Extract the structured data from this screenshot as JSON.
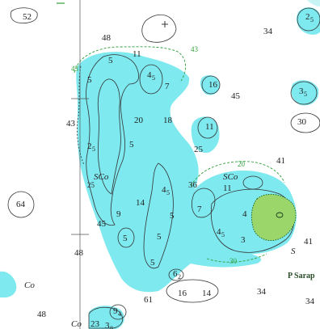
{
  "map": {
    "colors": {
      "land": "#ffffff",
      "shallow": "#7ee9ef",
      "shallow_light": "#c8f4f6",
      "drying": "#9ad66a",
      "depth_line": "#333333",
      "green_contour": "#2f9e3a"
    },
    "soundings": [
      {
        "value": "52"
      },
      {
        "value": "2",
        "sub": "5"
      },
      {
        "value": "48"
      },
      {
        "value": "34"
      },
      {
        "value": "11"
      },
      {
        "value": "5"
      },
      {
        "value": "4",
        "sub": "5"
      },
      {
        "value": "7"
      },
      {
        "value": "16"
      },
      {
        "value": "45"
      },
      {
        "value": "3",
        "sub": "5"
      },
      {
        "value": "5"
      },
      {
        "value": "20"
      },
      {
        "value": "18"
      },
      {
        "value": "43"
      },
      {
        "value": "30"
      },
      {
        "value": "11"
      },
      {
        "value": "2",
        "sub": "5"
      },
      {
        "value": "5"
      },
      {
        "value": "25"
      },
      {
        "value": "41"
      },
      {
        "value": "11"
      },
      {
        "value": "36"
      },
      {
        "value": "4",
        "sub": "5"
      },
      {
        "value": "64"
      },
      {
        "value": "14"
      },
      {
        "value": "9"
      },
      {
        "value": "7"
      },
      {
        "value": "4"
      },
      {
        "value": "5"
      },
      {
        "value": "45"
      },
      {
        "value": "4",
        "sub": "5"
      },
      {
        "value": "3"
      },
      {
        "value": "41"
      },
      {
        "value": "5"
      },
      {
        "value": "5"
      },
      {
        "value": "48"
      },
      {
        "value": "5"
      },
      {
        "value": "6",
        "sub": "2"
      },
      {
        "value": "16"
      },
      {
        "value": "14"
      },
      {
        "value": "34"
      },
      {
        "value": "61"
      },
      {
        "value": "34"
      },
      {
        "value": "9",
        "sub": "4"
      },
      {
        "value": "48"
      },
      {
        "value": "23"
      },
      {
        "value": "3",
        "sub": "8"
      }
    ],
    "contour_labels": [
      {
        "value": "43"
      },
      {
        "value": "43"
      },
      {
        "value": "20"
      },
      {
        "value": "25"
      },
      {
        "value": "30"
      }
    ],
    "seabed_labels": [
      {
        "text": "SCo"
      },
      {
        "text": "SCo"
      },
      {
        "text": "S"
      },
      {
        "text": "Co"
      },
      {
        "text": "Co"
      }
    ],
    "place_labels": [
      {
        "text": "P Sarap"
      }
    ]
  }
}
